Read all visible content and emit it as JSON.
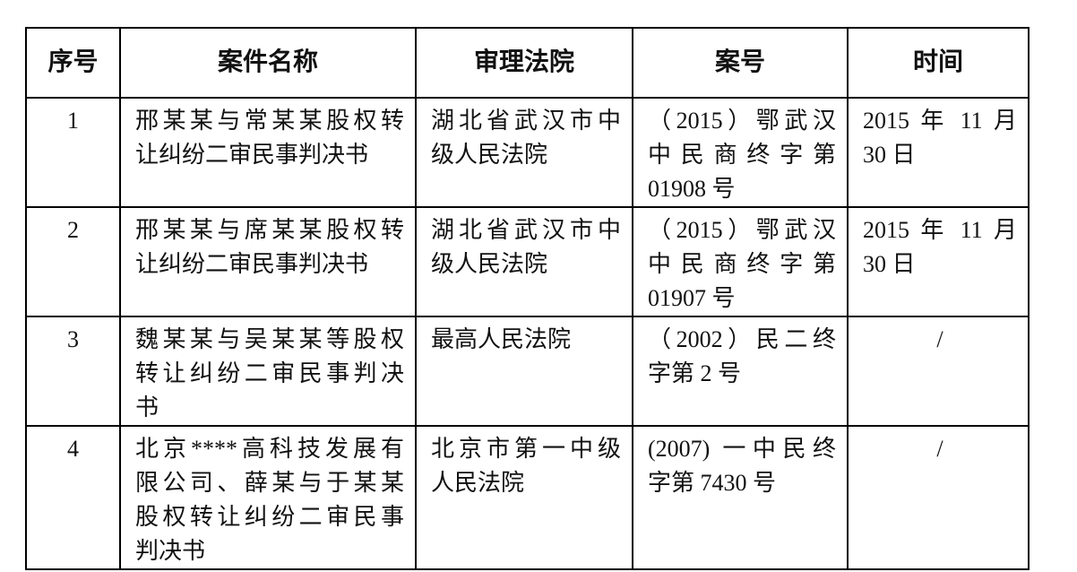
{
  "headers": [
    "序号",
    "案件名称",
    "审理法院",
    "案号",
    "时间"
  ],
  "rows": [
    {
      "no": "1",
      "name": [
        "邢某某与常某某股权转",
        "让纠纷二审民事判决书"
      ],
      "court": [
        "湖北省武汉市中",
        "级人民法院"
      ],
      "case": [
        "（2015）鄂武汉",
        "中民商终字第",
        "01908 号"
      ],
      "time": [
        "2015 年 11 月",
        "30 日"
      ]
    },
    {
      "no": "2",
      "name": [
        "邢某某与席某某股权转",
        "让纠纷二审民事判决书"
      ],
      "court": [
        "湖北省武汉市中",
        "级人民法院"
      ],
      "case": [
        "（2015）鄂武汉",
        "中民商终字第",
        "01907 号"
      ],
      "time": [
        "2015 年 11 月",
        "30 日"
      ]
    },
    {
      "no": "3",
      "name": [
        "魏某某与吴某某等股权",
        "转让纠纷二审民事判决",
        "书"
      ],
      "court": [
        "最高人民法院"
      ],
      "case": [
        "（2002）民二终",
        "字第 2 号"
      ],
      "time": [
        "/"
      ]
    },
    {
      "no": "4",
      "name": [
        "北京****高科技发展有",
        "限公司、薛某与于某某",
        "股权转让纠纷二审民事",
        "判决书"
      ],
      "court": [
        "北京市第一中级",
        "人民法院"
      ],
      "case": [
        "(2007) 一中民终",
        "字第 7430 号"
      ],
      "time": [
        "/"
      ]
    }
  ]
}
